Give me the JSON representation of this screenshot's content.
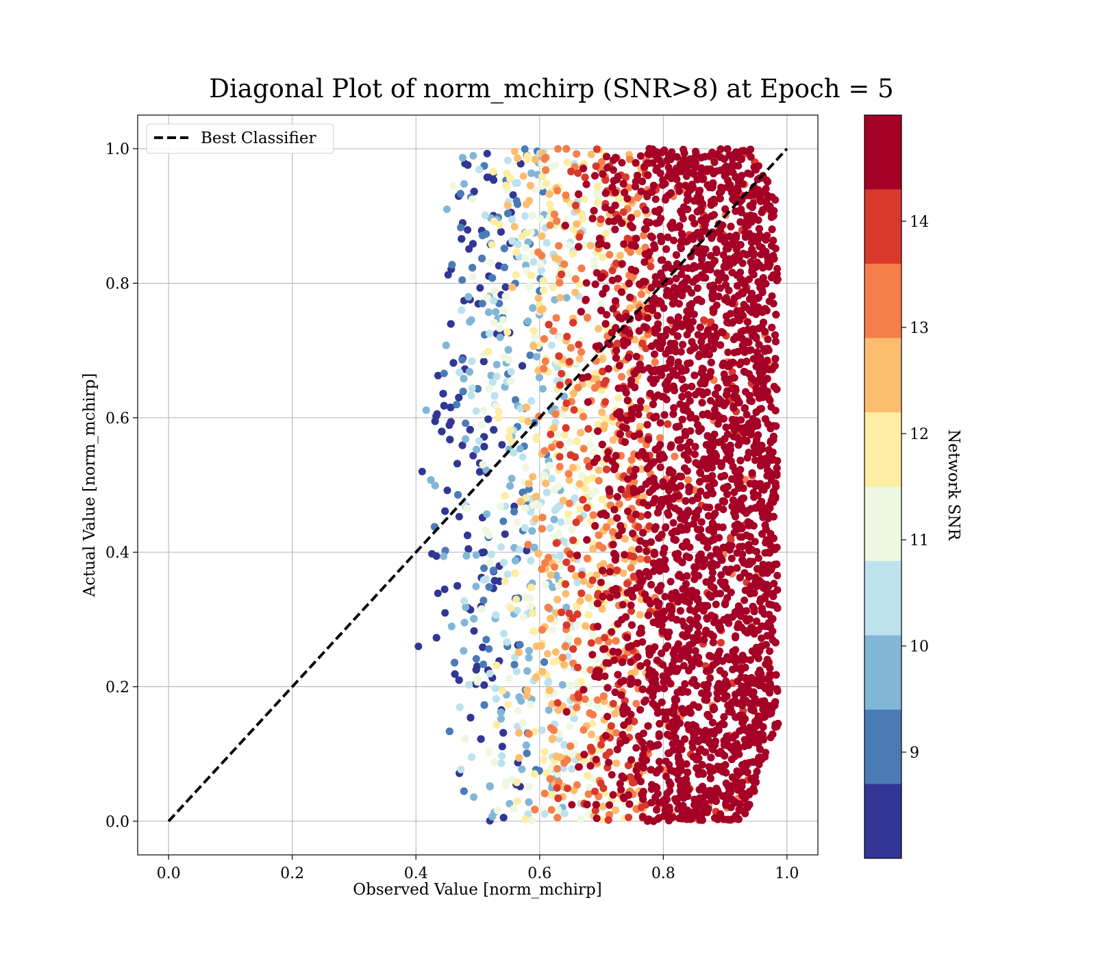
{
  "chart_data": {
    "type": "scatter",
    "title": "Diagonal Plot of norm_mchirp (SNR>8) at Epoch = 5",
    "xlabel": "Observed Value [norm_mchirp]",
    "ylabel": "Actual Value [norm_mchirp]",
    "xlim": [
      -0.05,
      1.05
    ],
    "ylim": [
      -0.05,
      1.05
    ],
    "xticks": [
      "0.0",
      "0.2",
      "0.4",
      "0.6",
      "0.8",
      "1.0"
    ],
    "yticks": [
      "0.0",
      "0.2",
      "0.4",
      "0.6",
      "0.8",
      "1.0"
    ],
    "grid": true,
    "legend": {
      "position": "upper-left",
      "entries": [
        "Best Classifier"
      ]
    },
    "reference_line": {
      "name": "Best Classifier",
      "style": "dashed",
      "color": "#000000",
      "x": [
        0.0,
        1.0
      ],
      "y": [
        0.0,
        1.0
      ]
    },
    "colorbar": {
      "label": "Network SNR",
      "ticks": [
        "9",
        "10",
        "11",
        "12",
        "13",
        "14"
      ],
      "range": [
        8,
        15
      ],
      "bins": [
        {
          "from": 8.0,
          "to": 8.7,
          "color": "#313695"
        },
        {
          "from": 8.7,
          "to": 9.4,
          "color": "#4a7bb7"
        },
        {
          "from": 9.4,
          "to": 10.1,
          "color": "#82b6d6"
        },
        {
          "from": 10.1,
          "to": 10.8,
          "color": "#bde2ee"
        },
        {
          "from": 10.8,
          "to": 11.5,
          "color": "#eef7e0"
        },
        {
          "from": 11.5,
          "to": 12.2,
          "color": "#feeda2"
        },
        {
          "from": 12.2,
          "to": 12.9,
          "color": "#fdbd6f"
        },
        {
          "from": 12.9,
          "to": 13.6,
          "color": "#f67e4b"
        },
        {
          "from": 13.6,
          "to": 14.3,
          "color": "#d9392c"
        },
        {
          "from": 14.3,
          "to": 15.0,
          "color": "#a50026"
        }
      ]
    },
    "scatter": {
      "x_range": [
        0.4,
        1.0
      ],
      "y_range": [
        0.0,
        1.0
      ],
      "trend": "SNR increases with observed value; points with observed value > 0.78 are nearly all SNR > 14.3"
    }
  }
}
